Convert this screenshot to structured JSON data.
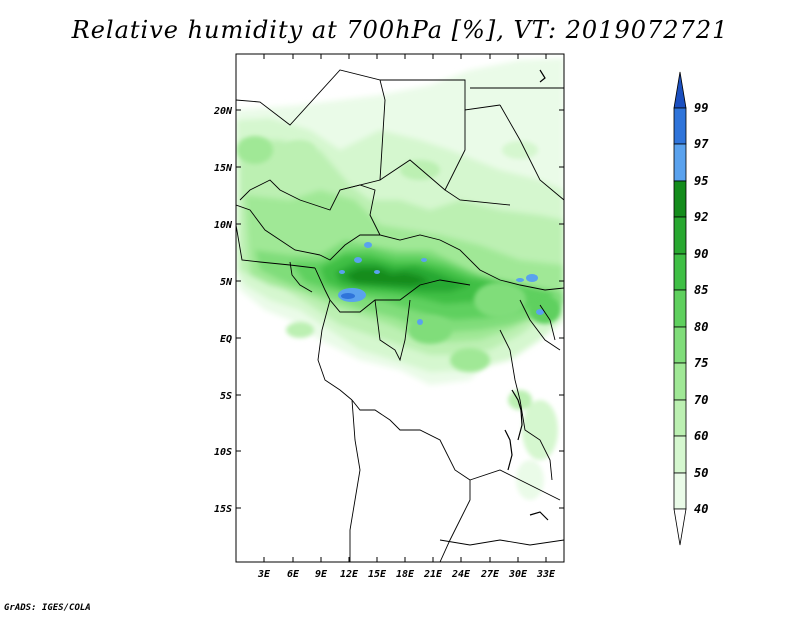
{
  "title": "Relative humidity at 700hPa [%], VT: 2019072721",
  "footer": "GrADS: IGES/COLA",
  "map": {
    "lat_labels": [
      "20N",
      "15N",
      "10N",
      "5N",
      "EQ",
      "5S",
      "10S",
      "15S"
    ],
    "lon_labels": [
      "3E",
      "6E",
      "9E",
      "12E",
      "15E",
      "18E",
      "21E",
      "24E",
      "27E",
      "30E",
      "33E"
    ]
  },
  "colorbar": {
    "levels": [
      "99",
      "97",
      "95",
      "92",
      "90",
      "85",
      "80",
      "75",
      "70",
      "60",
      "50",
      "40"
    ],
    "colors": {
      "lt40": "#ffffff",
      "40_50": "#eafbe8",
      "50_60": "#d5f7cf",
      "60_70": "#bcf0b2",
      "70_75": "#a0e896",
      "75_80": "#80dd7a",
      "80_85": "#5fd05e",
      "85_90": "#3fbf45",
      "90_92": "#28a830",
      "92_95": "#148c1c",
      "95_97": "#5aa2ee",
      "97_99": "#2f74da",
      "gt99": "#1b4fbf"
    }
  }
}
